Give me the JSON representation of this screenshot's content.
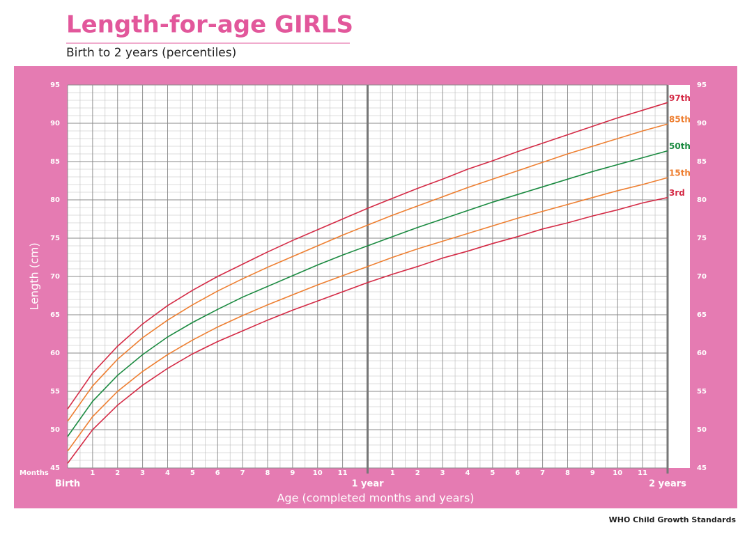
{
  "chart_data": {
    "type": "line",
    "title": "Length-for-age GIRLS",
    "subtitle": "Birth to 2 years (percentiles)",
    "y_label": "Length (cm)",
    "x_label": "Age (completed months and years)",
    "x_unit_label": "Months",
    "footer": "WHO Child Growth Standards",
    "x": [
      0,
      1,
      2,
      3,
      4,
      5,
      6,
      7,
      8,
      9,
      10,
      11,
      12,
      13,
      14,
      15,
      16,
      17,
      18,
      19,
      20,
      21,
      22,
      23,
      24
    ],
    "xlim": [
      0,
      24
    ],
    "xticks": [
      {
        "value": 0,
        "label": "Birth"
      },
      1,
      2,
      3,
      4,
      5,
      6,
      7,
      8,
      9,
      10,
      11,
      {
        "value": 12,
        "label": "1 year"
      },
      {
        "value": 13,
        "label": "1"
      },
      {
        "value": 14,
        "label": "2"
      },
      {
        "value": 15,
        "label": "3"
      },
      {
        "value": 16,
        "label": "4"
      },
      {
        "value": 17,
        "label": "5"
      },
      {
        "value": 18,
        "label": "6"
      },
      {
        "value": 19,
        "label": "7"
      },
      {
        "value": 20,
        "label": "8"
      },
      {
        "value": 21,
        "label": "9"
      },
      {
        "value": 22,
        "label": "10"
      },
      {
        "value": 23,
        "label": "11"
      },
      {
        "value": 24,
        "label": "2 years"
      }
    ],
    "ylim": [
      45,
      95
    ],
    "yticks": [
      45,
      50,
      55,
      60,
      65,
      70,
      75,
      80,
      85,
      90,
      95
    ],
    "grid": true,
    "series": [
      {
        "name": "97th",
        "color": "#d42a45",
        "values": [
          52.7,
          57.4,
          60.9,
          63.8,
          66.2,
          68.2,
          70.0,
          71.6,
          73.2,
          74.7,
          76.1,
          77.5,
          78.9,
          80.2,
          81.5,
          82.7,
          84.0,
          85.1,
          86.3,
          87.4,
          88.5,
          89.6,
          90.7,
          91.7,
          92.7
        ]
      },
      {
        "name": "85th",
        "color": "#ee7f31",
        "values": [
          51.1,
          55.7,
          59.2,
          62.0,
          64.3,
          66.3,
          68.1,
          69.7,
          71.2,
          72.6,
          74.0,
          75.4,
          76.7,
          78.0,
          79.2,
          80.4,
          81.6,
          82.7,
          83.8,
          84.9,
          86.0,
          87.0,
          88.0,
          89.0,
          89.9
        ]
      },
      {
        "name": "50th",
        "color": "#1a8a40",
        "values": [
          49.1,
          53.7,
          57.1,
          59.8,
          62.1,
          64.0,
          65.7,
          67.3,
          68.7,
          70.1,
          71.5,
          72.8,
          74.0,
          75.2,
          76.4,
          77.5,
          78.6,
          79.7,
          80.7,
          81.7,
          82.7,
          83.7,
          84.6,
          85.5,
          86.4
        ]
      },
      {
        "name": "15th",
        "color": "#ee7f31",
        "values": [
          47.2,
          51.7,
          55.0,
          57.6,
          59.8,
          61.7,
          63.4,
          64.9,
          66.3,
          67.6,
          68.9,
          70.1,
          71.3,
          72.5,
          73.6,
          74.6,
          75.6,
          76.6,
          77.6,
          78.5,
          79.4,
          80.3,
          81.2,
          82.0,
          82.9
        ]
      },
      {
        "name": "3rd",
        "color": "#d42a45",
        "values": [
          45.6,
          50.0,
          53.2,
          55.8,
          58.0,
          59.9,
          61.5,
          62.9,
          64.3,
          65.6,
          66.8,
          68.0,
          69.2,
          70.3,
          71.3,
          72.4,
          73.3,
          74.3,
          75.2,
          76.2,
          77.0,
          77.9,
          78.7,
          79.6,
          80.3
        ]
      }
    ]
  }
}
